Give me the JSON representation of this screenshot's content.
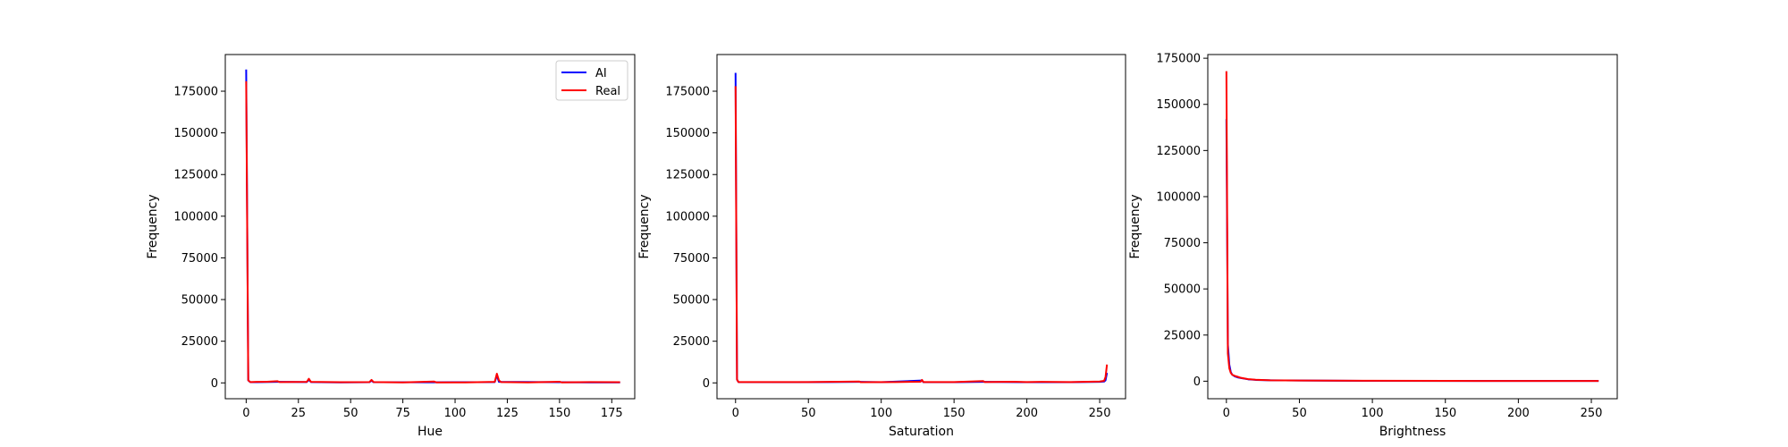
{
  "colors": {
    "ai": "#0000ff",
    "real": "#ff0000",
    "axes": "#000000",
    "background": "#ffffff"
  },
  "legend": {
    "placement": "top-right",
    "entries": [
      "AI",
      "Real"
    ]
  },
  "chart_data": [
    {
      "type": "line",
      "xlabel": "Hue",
      "ylabel": "Frequency",
      "xlim": [
        -10,
        186
      ],
      "ylim": [
        -9500,
        197000
      ],
      "xticks": [
        0,
        25,
        50,
        75,
        100,
        125,
        150,
        175
      ],
      "yticks": [
        0,
        25000,
        50000,
        75000,
        100000,
        125000,
        150000,
        175000
      ],
      "grid": false,
      "legend": "top-right",
      "series": [
        {
          "name": "AI",
          "color": "#0000ff",
          "points": [
            [
              0,
              188000
            ],
            [
              1,
              1500
            ],
            [
              2,
              400
            ],
            [
              5,
              400
            ],
            [
              8,
              500
            ],
            [
              15,
              600
            ],
            [
              29,
              500
            ],
            [
              30,
              1800
            ],
            [
              31,
              500
            ],
            [
              45,
              300
            ],
            [
              59,
              400
            ],
            [
              60,
              1300
            ],
            [
              61,
              400
            ],
            [
              90,
              350
            ],
            [
              119,
              500
            ],
            [
              120,
              4500
            ],
            [
              121,
              600
            ],
            [
              150,
              400
            ],
            [
              165,
              300
            ],
            [
              179,
              300
            ]
          ]
        },
        {
          "name": "Real",
          "color": "#ff0000",
          "points": [
            [
              0,
              181000
            ],
            [
              1,
              1500
            ],
            [
              2,
              500
            ],
            [
              5,
              600
            ],
            [
              10,
              700
            ],
            [
              15,
              1000
            ],
            [
              16,
              500
            ],
            [
              29,
              600
            ],
            [
              30,
              2500
            ],
            [
              31,
              600
            ],
            [
              45,
              400
            ],
            [
              59,
              500
            ],
            [
              60,
              1800
            ],
            [
              61,
              500
            ],
            [
              75,
              300
            ],
            [
              90,
              800
            ],
            [
              91,
              300
            ],
            [
              105,
              300
            ],
            [
              119,
              600
            ],
            [
              120,
              5500
            ],
            [
              121,
              1500
            ],
            [
              122,
              500
            ],
            [
              135,
              300
            ],
            [
              150,
              700
            ],
            [
              151,
              300
            ],
            [
              165,
              500
            ],
            [
              179,
              400
            ]
          ]
        }
      ]
    },
    {
      "type": "line",
      "xlabel": "Saturation",
      "ylabel": "Frequency",
      "xlim": [
        -12.75,
        267.75
      ],
      "ylim": [
        -9500,
        197000
      ],
      "xticks": [
        0,
        50,
        100,
        150,
        200,
        250
      ],
      "yticks": [
        0,
        25000,
        50000,
        75000,
        100000,
        125000,
        150000,
        175000
      ],
      "grid": false,
      "series": [
        {
          "name": "AI",
          "color": "#0000ff",
          "points": [
            [
              0,
              186000
            ],
            [
              1,
              2000
            ],
            [
              2,
              500
            ],
            [
              30,
              400
            ],
            [
              64,
              500
            ],
            [
              85,
              600
            ],
            [
              100,
              400
            ],
            [
              128,
              1400
            ],
            [
              129,
              400
            ],
            [
              150,
              400
            ],
            [
              170,
              600
            ],
            [
              200,
              400
            ],
            [
              230,
              400
            ],
            [
              250,
              600
            ],
            [
              253,
              800
            ],
            [
              254,
              1500
            ],
            [
              255,
              6000
            ]
          ]
        },
        {
          "name": "Real",
          "color": "#ff0000",
          "points": [
            [
              0,
              178000
            ],
            [
              1,
              2000
            ],
            [
              2,
              500
            ],
            [
              20,
              500
            ],
            [
              50,
              500
            ],
            [
              85,
              800
            ],
            [
              86,
              400
            ],
            [
              110,
              500
            ],
            [
              127,
              700
            ],
            [
              128,
              1800
            ],
            [
              129,
              500
            ],
            [
              150,
              500
            ],
            [
              170,
              1100
            ],
            [
              171,
              500
            ],
            [
              190,
              700
            ],
            [
              200,
              500
            ],
            [
              210,
              600
            ],
            [
              230,
              500
            ],
            [
              250,
              800
            ],
            [
              253,
              1200
            ],
            [
              254,
              3500
            ],
            [
              255,
              11000
            ]
          ]
        }
      ]
    },
    {
      "type": "line",
      "xlabel": "Brightness",
      "ylabel": "Frequency",
      "xlim": [
        -12.75,
        267.75
      ],
      "ylim": [
        -9500,
        177000
      ],
      "xticks": [
        0,
        50,
        100,
        150,
        200,
        250
      ],
      "yticks": [
        0,
        25000,
        50000,
        75000,
        100000,
        125000,
        150000,
        175000
      ],
      "grid": false,
      "series": [
        {
          "name": "AI",
          "color": "#0000ff",
          "points": [
            [
              0,
              142000
            ],
            [
              1,
              20000
            ],
            [
              2,
              9000
            ],
            [
              3,
              5000
            ],
            [
              4,
              3500
            ],
            [
              6,
              2500
            ],
            [
              8,
              2000
            ],
            [
              10,
              1700
            ],
            [
              15,
              1000
            ],
            [
              20,
              700
            ],
            [
              30,
              500
            ],
            [
              50,
              350
            ],
            [
              100,
              200
            ],
            [
              150,
              150
            ],
            [
              200,
              120
            ],
            [
              255,
              100
            ]
          ]
        },
        {
          "name": "Real",
          "color": "#ff0000",
          "points": [
            [
              0,
              168000
            ],
            [
              1,
              15000
            ],
            [
              2,
              7000
            ],
            [
              3,
              4500
            ],
            [
              4,
              3500
            ],
            [
              6,
              2800
            ],
            [
              8,
              2300
            ],
            [
              10,
              1800
            ],
            [
              15,
              1100
            ],
            [
              20,
              800
            ],
            [
              30,
              500
            ],
            [
              50,
              350
            ],
            [
              100,
              220
            ],
            [
              150,
              170
            ],
            [
              200,
              130
            ],
            [
              255,
              100
            ]
          ]
        }
      ]
    }
  ]
}
